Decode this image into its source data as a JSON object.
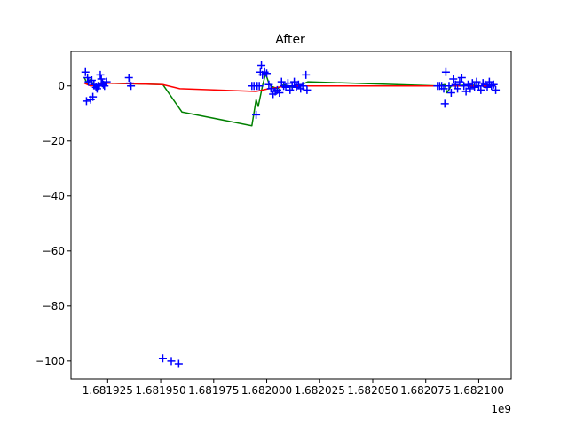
{
  "chart_data": {
    "type": "scatter",
    "title": "After",
    "xlabel": "",
    "ylabel": "",
    "x_offset_label": "1e9",
    "xlim": [
      1681907.7,
      1682115.3
    ],
    "ylim": [
      -106.5,
      12.5
    ],
    "xticks": [
      1681925,
      1681950,
      1681975,
      1682000,
      1682025,
      1682050,
      1682075,
      1682100
    ],
    "xtick_labels": [
      "1.681925",
      "1.681950",
      "1.681975",
      "1.682000",
      "1.682025",
      "1.682050",
      "1.682075",
      "1.682100"
    ],
    "yticks": [
      0,
      -20,
      -40,
      -60,
      -80,
      -100
    ],
    "ytick_labels": [
      "0",
      "−20",
      "−40",
      "−60",
      "−80",
      "−100"
    ],
    "grid": false,
    "series": [
      {
        "style": "scatter",
        "marker": "+",
        "color": "#0000ff",
        "points": [
          [
            1681914.5,
            5.0
          ],
          [
            1681915.0,
            -5.5
          ],
          [
            1681915.5,
            3.0
          ],
          [
            1681916.0,
            1.5
          ],
          [
            1681917.0,
            -5.0
          ],
          [
            1681917.5,
            2.0
          ],
          [
            1681918.0,
            -4.0
          ],
          [
            1681918.5,
            0.5
          ],
          [
            1681919.5,
            -0.5
          ],
          [
            1681920.0,
            -1.0
          ],
          [
            1681920.5,
            0.0
          ],
          [
            1681921.5,
            4.0
          ],
          [
            1681922.0,
            2.5
          ],
          [
            1681922.5,
            1.0
          ],
          [
            1681923.0,
            0.5
          ],
          [
            1681923.5,
            0.0
          ],
          [
            1681924.5,
            1.5
          ],
          [
            1681935.0,
            3.0
          ],
          [
            1681935.5,
            1.0
          ],
          [
            1681936.0,
            0.0
          ],
          [
            1681951.0,
            -99.0
          ],
          [
            1681955.0,
            -100.0
          ],
          [
            1681958.5,
            -101.0
          ],
          [
            1681993.0,
            0.0
          ],
          [
            1681994.0,
            0.0
          ],
          [
            1681995.0,
            -10.5
          ],
          [
            1681995.5,
            0.0
          ],
          [
            1681996.5,
            0.0
          ],
          [
            1681997.0,
            5.0
          ],
          [
            1681997.5,
            7.5
          ],
          [
            1681998.0,
            4.0
          ],
          [
            1681999.0,
            5.0
          ],
          [
            1682000.0,
            4.5
          ],
          [
            1682001.0,
            0.5
          ],
          [
            1682002.0,
            -1.0
          ],
          [
            1682003.0,
            -3.0
          ],
          [
            1682004.0,
            -2.0
          ],
          [
            1682005.0,
            -1.5
          ],
          [
            1682006.0,
            -2.5
          ],
          [
            1682007.0,
            1.5
          ],
          [
            1682008.0,
            0.0
          ],
          [
            1682009.0,
            -0.5
          ],
          [
            1682010.0,
            1.0
          ],
          [
            1682011.0,
            -1.5
          ],
          [
            1682012.0,
            0.0
          ],
          [
            1682013.0,
            1.5
          ],
          [
            1682014.0,
            -0.5
          ],
          [
            1682015.0,
            0.5
          ],
          [
            1682016.0,
            -1.0
          ],
          [
            1682017.0,
            0.0
          ],
          [
            1682018.5,
            4.0
          ],
          [
            1682019.0,
            -1.5
          ],
          [
            1682080.5,
            0.0
          ],
          [
            1682081.5,
            0.0
          ],
          [
            1682082.5,
            0.0
          ],
          [
            1682083.5,
            -1.0
          ],
          [
            1682084.5,
            5.0
          ],
          [
            1682084.0,
            -6.5
          ],
          [
            1682086.0,
            0.0
          ],
          [
            1682087.0,
            -2.5
          ],
          [
            1682088.0,
            2.5
          ],
          [
            1682089.0,
            0.5
          ],
          [
            1682090.0,
            -1.0
          ],
          [
            1682091.0,
            1.5
          ],
          [
            1682092.0,
            3.0
          ],
          [
            1682093.0,
            0.0
          ],
          [
            1682094.0,
            -2.0
          ],
          [
            1682095.0,
            0.5
          ],
          [
            1682096.0,
            -1.0
          ],
          [
            1682097.0,
            1.0
          ],
          [
            1682098.0,
            -0.5
          ],
          [
            1682099.0,
            1.5
          ],
          [
            1682100.0,
            0.0
          ],
          [
            1682101.0,
            -1.5
          ],
          [
            1682102.0,
            1.0
          ],
          [
            1682103.0,
            0.5
          ],
          [
            1682104.0,
            -0.5
          ],
          [
            1682105.0,
            1.5
          ],
          [
            1682106.0,
            0.0
          ],
          [
            1682107.0,
            0.5
          ],
          [
            1682108.0,
            -1.5
          ]
        ]
      },
      {
        "style": "line",
        "color": "#008000",
        "points": [
          [
            1681914.0,
            3.0
          ],
          [
            1681915.5,
            0.5
          ],
          [
            1681917.0,
            2.5
          ],
          [
            1681918.5,
            0.0
          ],
          [
            1681920.0,
            0.0
          ],
          [
            1681922.5,
            1.5
          ],
          [
            1681925.0,
            1.0
          ],
          [
            1681951.0,
            0.5
          ],
          [
            1681960.0,
            -9.5
          ],
          [
            1681993.0,
            -14.5
          ],
          [
            1681995.0,
            -5.0
          ],
          [
            1681996.0,
            -7.5
          ],
          [
            1681998.0,
            0.0
          ],
          [
            1681999.5,
            4.5
          ],
          [
            1682001.0,
            1.0
          ],
          [
            1682002.0,
            0.0
          ],
          [
            1682005.0,
            -1.0
          ],
          [
            1682008.0,
            0.5
          ],
          [
            1682012.0,
            -0.5
          ],
          [
            1682015.0,
            0.0
          ],
          [
            1682019.5,
            1.5
          ],
          [
            1682081.0,
            0.0
          ],
          [
            1682084.0,
            0.5
          ],
          [
            1682085.0,
            -2.5
          ],
          [
            1682087.0,
            0.0
          ],
          [
            1682090.0,
            0.0
          ],
          [
            1682095.0,
            0.5
          ],
          [
            1682100.0,
            0.0
          ],
          [
            1682108.0,
            0.0
          ]
        ]
      },
      {
        "style": "line",
        "color": "#ff0000",
        "points": [
          [
            1681914.0,
            1.0
          ],
          [
            1681917.0,
            0.0
          ],
          [
            1681920.0,
            0.5
          ],
          [
            1681925.0,
            1.0
          ],
          [
            1681951.0,
            0.5
          ],
          [
            1681959.0,
            -1.0
          ],
          [
            1681995.0,
            -2.0
          ],
          [
            1682001.0,
            -1.0
          ],
          [
            1682005.0,
            -0.5
          ],
          [
            1682010.0,
            0.0
          ],
          [
            1682019.0,
            0.0
          ],
          [
            1682081.0,
            0.0
          ],
          [
            1682086.0,
            0.0
          ],
          [
            1682095.0,
            0.0
          ],
          [
            1682108.0,
            0.0
          ]
        ]
      }
    ]
  }
}
